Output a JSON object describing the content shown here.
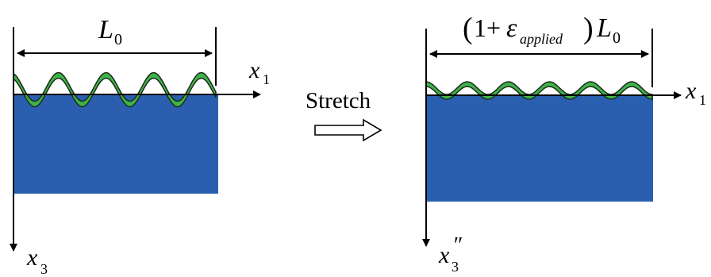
{
  "left_panel": {
    "length_label": "L",
    "length_sub": "0",
    "x_axis_label": "x",
    "x_axis_sub": "1",
    "z_axis_label": "x",
    "z_axis_sub": "3"
  },
  "middle": {
    "stretch_label": "Stretch"
  },
  "right_panel": {
    "open_paren": "(",
    "one_plus": "1+",
    "epsilon": "ε",
    "epsilon_sub": "applied",
    "close_paren": ")",
    "length_label": "L",
    "length_sub": "0",
    "x_axis_label": "x",
    "x_axis_sub": "1",
    "z_axis_label": "x",
    "z_axis_sub": "3",
    "z_axis_prime": "″"
  },
  "colors": {
    "substrate": "#2a5fb0",
    "film": "#3cb44a",
    "film_outline": "#1f2a1a",
    "axis": "#000000"
  }
}
